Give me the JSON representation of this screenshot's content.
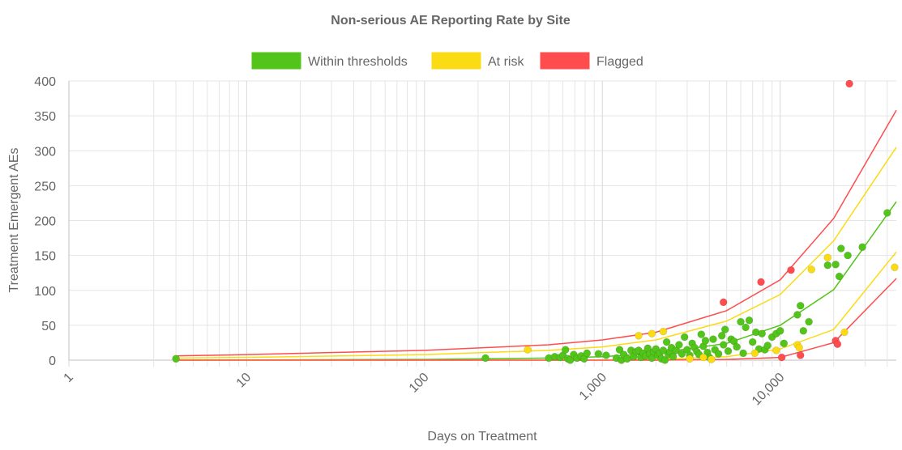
{
  "chart_data": {
    "type": "scatter",
    "title": "Non-serious AE Reporting Rate by Site",
    "xlabel": "Days on Treatment",
    "ylabel": "Treatment Emergent AEs",
    "x_scale": "log",
    "xlim": [
      1,
      45000
    ],
    "ylim": [
      0,
      400
    ],
    "grid": true,
    "legend_position": "top",
    "x_ticks": [
      "1",
      "10",
      "100",
      "1,000",
      "10,000"
    ],
    "y_ticks": [
      "0",
      "50",
      "100",
      "150",
      "200",
      "250",
      "300",
      "350",
      "400"
    ],
    "series": [
      {
        "name": "Within thresholds",
        "color": "#52c41a",
        "points": [
          [
            4,
            2
          ],
          [
            220,
            3
          ],
          [
            500,
            3
          ],
          [
            540,
            5
          ],
          [
            580,
            4
          ],
          [
            600,
            7
          ],
          [
            620,
            15
          ],
          [
            640,
            2
          ],
          [
            660,
            0
          ],
          [
            690,
            8
          ],
          [
            720,
            3
          ],
          [
            760,
            6
          ],
          [
            790,
            2
          ],
          [
            820,
            10
          ],
          [
            950,
            9
          ],
          [
            1050,
            7
          ],
          [
            1200,
            3
          ],
          [
            1250,
            15
          ],
          [
            1280,
            0
          ],
          [
            1320,
            8
          ],
          [
            1380,
            2
          ],
          [
            1450,
            14
          ],
          [
            1500,
            5
          ],
          [
            1550,
            12
          ],
          [
            1600,
            14
          ],
          [
            1650,
            4
          ],
          [
            1700,
            10
          ],
          [
            1750,
            6
          ],
          [
            1800,
            17
          ],
          [
            1850,
            9
          ],
          [
            1900,
            3
          ],
          [
            1950,
            12
          ],
          [
            2000,
            16
          ],
          [
            2050,
            7
          ],
          [
            2100,
            10
          ],
          [
            2150,
            2
          ],
          [
            2200,
            14
          ],
          [
            2250,
            0
          ],
          [
            2300,
            26
          ],
          [
            2350,
            8
          ],
          [
            2400,
            12
          ],
          [
            2450,
            18
          ],
          [
            2500,
            5
          ],
          [
            2600,
            14
          ],
          [
            2700,
            22
          ],
          [
            2800,
            9
          ],
          [
            2900,
            33
          ],
          [
            3000,
            15
          ],
          [
            3100,
            7
          ],
          [
            3200,
            24
          ],
          [
            3300,
            18
          ],
          [
            3400,
            12
          ],
          [
            3500,
            8
          ],
          [
            3600,
            37
          ],
          [
            3700,
            20
          ],
          [
            3800,
            28
          ],
          [
            3900,
            11
          ],
          [
            4000,
            4
          ],
          [
            4200,
            30
          ],
          [
            4300,
            15
          ],
          [
            4500,
            9
          ],
          [
            4700,
            35
          ],
          [
            4800,
            22
          ],
          [
            4900,
            44
          ],
          [
            5100,
            13
          ],
          [
            5300,
            30
          ],
          [
            5500,
            27
          ],
          [
            5700,
            19
          ],
          [
            6000,
            55
          ],
          [
            6200,
            10
          ],
          [
            6400,
            47
          ],
          [
            6700,
            57
          ],
          [
            7000,
            26
          ],
          [
            7300,
            40
          ],
          [
            7600,
            16
          ],
          [
            7900,
            38
          ],
          [
            8200,
            15
          ],
          [
            8500,
            21
          ],
          [
            9000,
            33
          ],
          [
            9500,
            38
          ],
          [
            10000,
            42
          ],
          [
            10500,
            24
          ],
          [
            12500,
            65
          ],
          [
            13000,
            78
          ],
          [
            13500,
            42
          ],
          [
            14500,
            55
          ],
          [
            18500,
            136
          ],
          [
            20500,
            137
          ],
          [
            21500,
            120
          ],
          [
            22000,
            160
          ],
          [
            24000,
            150
          ],
          [
            29000,
            162
          ],
          [
            40000,
            211
          ]
        ]
      },
      {
        "name": "At risk",
        "color": "#fadb14",
        "points": [
          [
            380,
            15
          ],
          [
            1600,
            35
          ],
          [
            1900,
            38
          ],
          [
            2200,
            41
          ],
          [
            3100,
            2
          ],
          [
            3700,
            4
          ],
          [
            4100,
            1
          ],
          [
            7200,
            10
          ],
          [
            9500,
            14
          ],
          [
            12500,
            22
          ],
          [
            12800,
            18
          ],
          [
            15000,
            130
          ],
          [
            18500,
            147
          ],
          [
            23000,
            40
          ],
          [
            44000,
            133
          ]
        ]
      },
      {
        "name": "Flagged",
        "color": "#ff4d4f",
        "points": [
          [
            4800,
            83
          ],
          [
            7800,
            112
          ],
          [
            10200,
            4
          ],
          [
            11500,
            129
          ],
          [
            13000,
            7
          ],
          [
            20500,
            28
          ],
          [
            21000,
            23
          ],
          [
            24500,
            396
          ]
        ]
      }
    ],
    "control_limits": [
      {
        "series": "Flagged",
        "bound": "upper",
        "points": [
          [
            4,
            6
          ],
          [
            10,
            8
          ],
          [
            100,
            14
          ],
          [
            500,
            22
          ],
          [
            1000,
            29
          ],
          [
            2000,
            40
          ],
          [
            5000,
            71
          ],
          [
            10000,
            115
          ],
          [
            20000,
            203
          ],
          [
            45000,
            358
          ]
        ]
      },
      {
        "series": "At risk",
        "bound": "upper",
        "points": [
          [
            4,
            3
          ],
          [
            10,
            4
          ],
          [
            100,
            8
          ],
          [
            500,
            14
          ],
          [
            1000,
            19
          ],
          [
            2000,
            29
          ],
          [
            5000,
            56
          ],
          [
            10000,
            94
          ],
          [
            20000,
            171
          ],
          [
            45000,
            305
          ]
        ]
      },
      {
        "series": "Within thresholds",
        "bound": "center",
        "points": [
          [
            4,
            0
          ],
          [
            100,
            1
          ],
          [
            500,
            3
          ],
          [
            1000,
            5
          ],
          [
            2000,
            10
          ],
          [
            5000,
            24
          ],
          [
            10000,
            50
          ],
          [
            20000,
            101
          ],
          [
            45000,
            227
          ]
        ]
      },
      {
        "series": "At risk",
        "bound": "lower",
        "points": [
          [
            4,
            0
          ],
          [
            1000,
            0
          ],
          [
            2000,
            1
          ],
          [
            5000,
            5
          ],
          [
            10000,
            16
          ],
          [
            20000,
            44
          ],
          [
            45000,
            155
          ]
        ]
      },
      {
        "series": "Flagged",
        "bound": "lower",
        "points": [
          [
            4,
            0
          ],
          [
            2000,
            0
          ],
          [
            5000,
            1
          ],
          [
            10000,
            4
          ],
          [
            20000,
            25
          ],
          [
            45000,
            117
          ]
        ]
      }
    ]
  }
}
